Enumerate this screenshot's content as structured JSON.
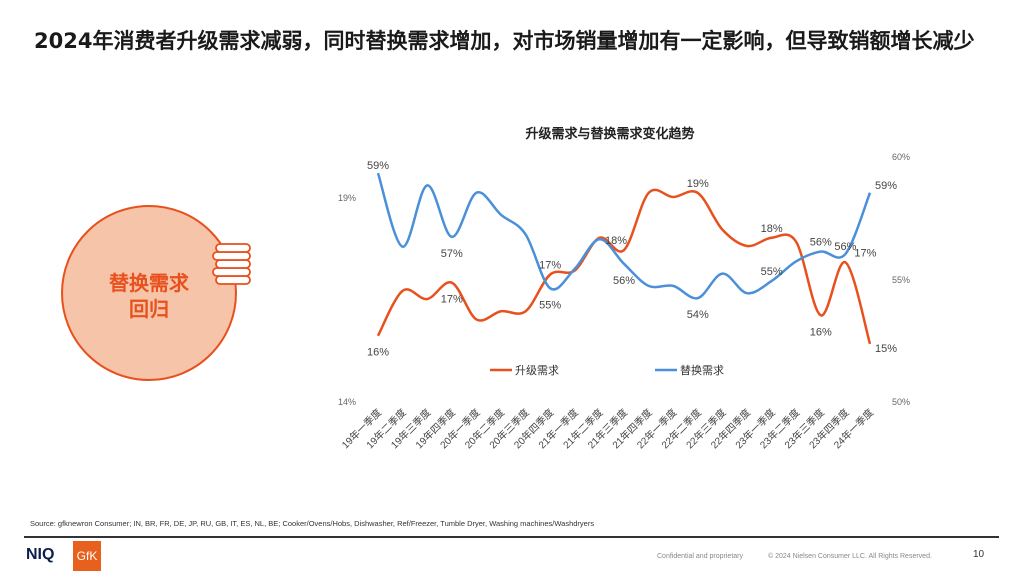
{
  "title": "2024年消费者升级需求减弱，同时替换需求增加，对市场销量增加有一定影响，但导致销额增长减少",
  "callout": {
    "line1": "替换需求",
    "line2": "回归",
    "icon": "coin-stack-icon"
  },
  "chart_data": {
    "type": "line",
    "title": "升级需求与替换需求变化趋势",
    "categories": [
      "19年一季度",
      "19年二季度",
      "19年三季度",
      "19年四季度",
      "20年一季度",
      "20年二季度",
      "20年三季度",
      "20年四季度",
      "21年一季度",
      "21年二季度",
      "21年三季度",
      "21年四季度",
      "22年一季度",
      "22年二季度",
      "22年三季度",
      "22年四季度",
      "23年一季度",
      "23年二季度",
      "23年三季度",
      "23年四季度",
      "24年一季度"
    ],
    "left_axis": {
      "range": [
        14,
        19
      ],
      "ticks": [
        "19%",
        "14%"
      ]
    },
    "right_axis": {
      "range": [
        50,
        60
      ],
      "ticks": [
        "60%",
        "55%",
        "50%"
      ]
    },
    "legend_position": "bottom",
    "series": [
      {
        "name": "升级需求",
        "axis": "left",
        "color": "#e8501d",
        "values": [
          15.6,
          16.7,
          16.5,
          16.9,
          16.0,
          16.2,
          16.2,
          17.1,
          17.2,
          18.0,
          17.7,
          19.1,
          19.0,
          19.1,
          18.2,
          17.8,
          18.0,
          17.9,
          16.1,
          17.4,
          15.4
        ],
        "labels": {
          "0": "16%",
          "3": "17%",
          "7": "17%",
          "10": "18%",
          "13": "19%",
          "16": "18%",
          "18": "16%",
          "19": "17%",
          "20": "15%"
        }
      },
      {
        "name": "替换需求",
        "axis": "right",
        "color": "#4a90d9",
        "values": [
          59.3,
          56.3,
          58.8,
          56.7,
          58.5,
          57.6,
          56.8,
          54.6,
          55.4,
          56.6,
          55.6,
          54.7,
          54.7,
          54.2,
          55.2,
          54.4,
          54.9,
          55.7,
          56.1,
          56.0,
          58.5
        ],
        "labels": {
          "0": "59%",
          "3": "57%",
          "7": "55%",
          "10": "56%",
          "13": "54%",
          "16": "55%",
          "18": "56%",
          "19": "56%",
          "20": "59%"
        }
      }
    ]
  },
  "footer": {
    "source": "Source: gfknewron Consumer; IN, BR, FR, DE, JP, RU, GB, IT, ES, NL, BE;  Cooker/Ovens/Hobs, Dishwasher, Ref/Freezer, Tumble Dryer, Washing machines/Washdryers",
    "logo_niq": "NIQ",
    "logo_gfk": "GfK",
    "confidential": "Confidential and proprietary",
    "copyright": "© 2024 Nielsen Consumer LLC. All Rights Reserved.",
    "page": "10"
  }
}
